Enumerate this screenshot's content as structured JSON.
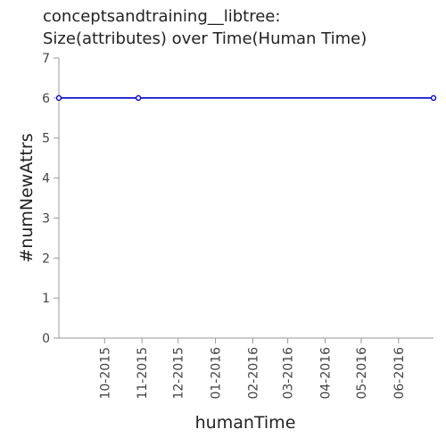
{
  "chart_data": {
    "type": "line",
    "title_line1": "conceptsandtraining__libtree:",
    "title_line2": "Size(attributes) over Time(Human Time)",
    "xlabel": "humanTime",
    "ylabel": "#numNewAttrs",
    "ylim": [
      0,
      7
    ],
    "yticks": [
      "0",
      "1",
      "2",
      "3",
      "4",
      "5",
      "6",
      "7"
    ],
    "xlim": [
      "2015-08-24",
      "2016-06-30"
    ],
    "xticks": [
      {
        "label": "10-2015",
        "date": "2015-10-01"
      },
      {
        "label": "11-2015",
        "date": "2015-11-01"
      },
      {
        "label": "12-2015",
        "date": "2015-12-01"
      },
      {
        "label": "01-2016",
        "date": "2016-01-01"
      },
      {
        "label": "02-2016",
        "date": "2016-02-01"
      },
      {
        "label": "03-2016",
        "date": "2016-03-01"
      },
      {
        "label": "04-2016",
        "date": "2016-04-01"
      },
      {
        "label": "05-2016",
        "date": "2016-05-01"
      },
      {
        "label": "06-2016",
        "date": "2016-06-01"
      }
    ],
    "series": [
      {
        "color": "#0000cc",
        "points": [
          {
            "x": "2015-08-24",
            "y": 6
          },
          {
            "x": "2015-10-29",
            "y": 6
          },
          {
            "x": "2016-06-30",
            "y": 6
          }
        ]
      }
    ],
    "grid": false,
    "legend": "none"
  }
}
